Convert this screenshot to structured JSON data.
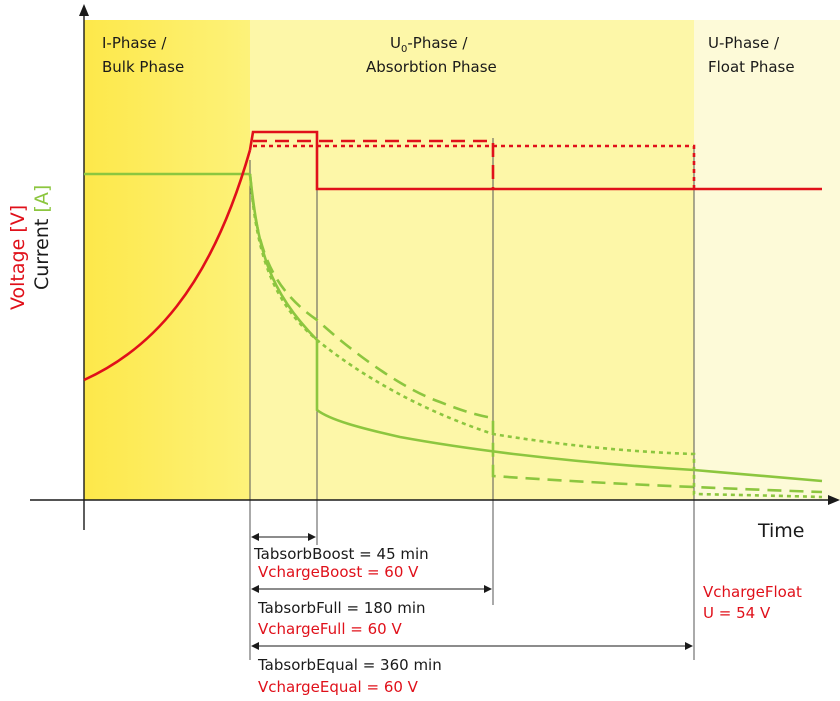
{
  "colors": {
    "voltage": "#e0101a",
    "current": "#8cc63f",
    "phase_bulk": "#fdf06e",
    "phase_absorption": "#fdf7a8",
    "phase_float": "#fdfad6"
  },
  "phases": [
    {
      "line1": "I-Phase /",
      "line2": "Bulk Phase"
    },
    {
      "line1_main": "U",
      "line1_sub": "0",
      "line1_rest": "-Phase /",
      "line2": "Absorbtion Phase"
    },
    {
      "line1": "U-Phase /",
      "line2": "Float Phase"
    }
  ],
  "axes": {
    "x_label": "Time",
    "y_voltage": "Voltage [V]",
    "y_current": "Current [A]",
    "y_voltage_word": "Voltage",
    "y_voltage_unit": "[V]",
    "y_current_word": "Current",
    "y_current_unit": "[A]"
  },
  "annotations": {
    "boost_time": "TabsorbBoost = 45 min",
    "boost_voltage": "VchargeBoost = 60 V",
    "full_time": "TabsorbFull = 180 min",
    "full_voltage": "VchargeFull = 60 V",
    "equal_time": "TabsorbEqual = 360 min",
    "equal_voltage": "VchargeEqual = 60 V",
    "float_voltage_line1": "VchargeFloat",
    "float_voltage_line2": "U = 54 V"
  },
  "legend_line_styles": {
    "solid": "Boost",
    "dashed": "Full",
    "dotted": "Equal"
  }
}
